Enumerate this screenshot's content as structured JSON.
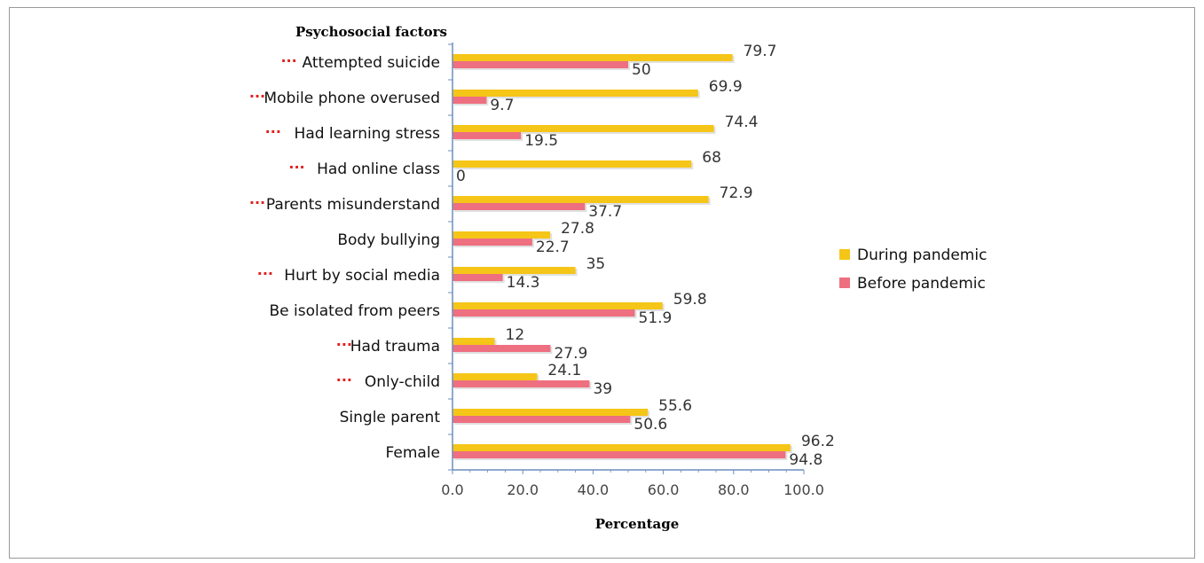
{
  "chart_data": {
    "type": "bar",
    "orientation": "horizontal",
    "title": "",
    "ylabel": "Psychosocial factors",
    "xlabel": "Percentage",
    "xlim": [
      0,
      100
    ],
    "xticks": [
      "0.0",
      "20.0",
      "40.0",
      "60.0",
      "80.0",
      "100.0"
    ],
    "categories": [
      "Attempted suicide",
      "Mobile phone overused",
      "Had learning stress",
      "Had online class",
      "Parents misunderstand",
      "Body bullying",
      "Hurt by social media",
      "Be isolated from  peers",
      "Had trauma",
      "Only-child",
      "Single parent",
      "Female"
    ],
    "significance_marker": "···",
    "significant": [
      true,
      true,
      true,
      true,
      true,
      false,
      true,
      false,
      true,
      true,
      false,
      false
    ],
    "series": [
      {
        "name": "During pandemic",
        "color": "#f5c518",
        "values": [
          79.7,
          69.9,
          74.4,
          68,
          72.9,
          27.8,
          35,
          59.8,
          12,
          24.1,
          55.6,
          96.2
        ]
      },
      {
        "name": "Before pandemic",
        "color": "#ee6f80",
        "values": [
          50,
          9.7,
          19.5,
          0,
          37.7,
          22.7,
          14.3,
          51.9,
          27.9,
          39,
          50.6,
          94.8
        ]
      }
    ],
    "value_labels": [
      [
        "79.7",
        "69.9",
        "74.4",
        "68",
        "72.9",
        "27.8",
        "35",
        "59.8",
        "12",
        "24.1",
        "55.6",
        "96.2"
      ],
      [
        "50",
        "9.7",
        "19.5",
        "0",
        "37.7",
        "22.7",
        "14.3",
        "51.9",
        "27.9",
        "39",
        "50.6",
        "94.8"
      ]
    ],
    "legend_position": "right",
    "grid": false
  }
}
